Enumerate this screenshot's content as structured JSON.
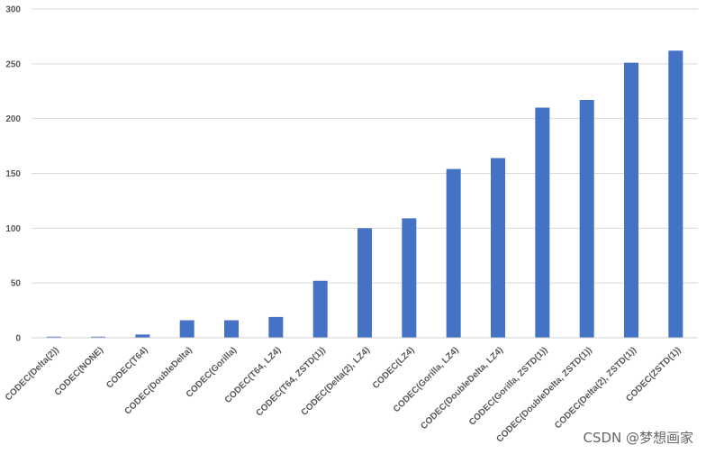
{
  "chart_data": {
    "type": "bar",
    "categories": [
      "CODEC(Delta(2))",
      "CODEC(NONE)",
      "CODEC(T64)",
      "CODEC(DoubleDelta)",
      "CODEC(Gorilla)",
      "CODEC(T64, LZ4)",
      "CODEC(T64, ZSTD(1))",
      "CODEC(Delta(2), LZ4)",
      "CODEC(LZ4)",
      "CODEC(Gorilla, LZ4)",
      "CODEC(DoubleDelta, LZ4)",
      "CODEC(Gorilla, ZSTD(1))",
      "CODEC(DoubleDelta, ZSTD(1))",
      "CODEC(Delta(2), ZSTD(1))",
      "CODEC(ZSTD(1))"
    ],
    "values": [
      1,
      1,
      3,
      16,
      16,
      19,
      52,
      100,
      109,
      154,
      164,
      210,
      217,
      251,
      262
    ],
    "ylim": [
      0,
      300
    ],
    "yticks": [
      0,
      50,
      100,
      150,
      200,
      250,
      300
    ],
    "grid": true,
    "bar_color": "#4472C4",
    "title": "",
    "xlabel": "",
    "ylabel": ""
  },
  "watermark": "CSDN @梦想画家"
}
